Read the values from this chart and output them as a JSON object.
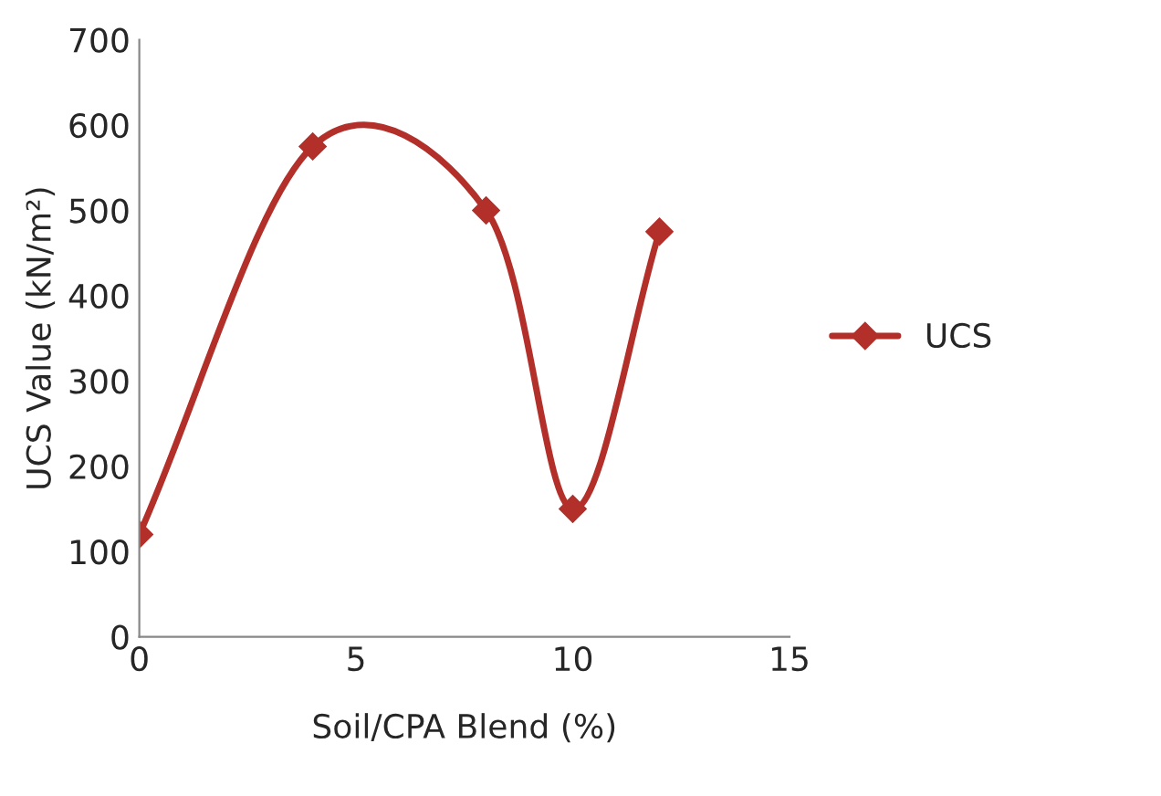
{
  "chart_data": {
    "type": "line",
    "xlabel": "Soil/CPA Blend (%)",
    "ylabel": "UCS Value (kN/m²)",
    "x": [
      0,
      4,
      8,
      10,
      12
    ],
    "series": [
      {
        "name": "UCS",
        "color": "#b3302a",
        "values": [
          120,
          575,
          500,
          150,
          475
        ]
      }
    ],
    "xlim": [
      0,
      15
    ],
    "xticks": [
      0,
      5,
      10,
      15
    ],
    "ylim": [
      0,
      700
    ],
    "yticks": [
      0,
      100,
      200,
      300,
      400,
      500,
      600,
      700
    ],
    "grid": false,
    "legend": "right",
    "marker": "diamond",
    "line_style": "solid"
  }
}
